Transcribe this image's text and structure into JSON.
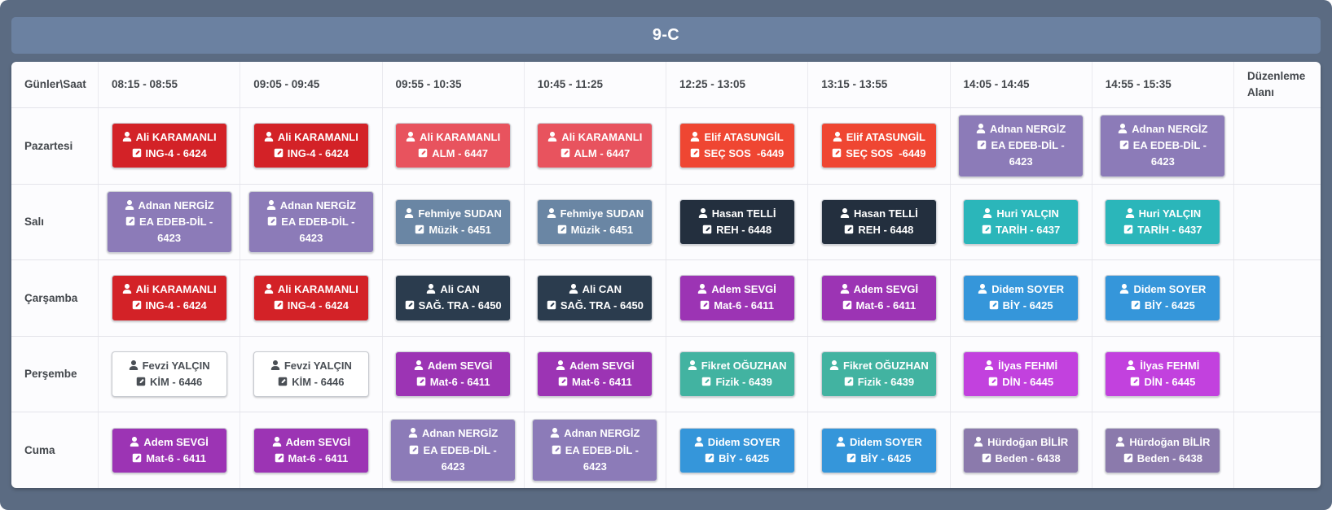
{
  "title": "9-C",
  "table": {
    "corner_header": "Günler\\Saat",
    "time_headers": [
      "08:15 - 08:55",
      "09:05 - 09:45",
      "09:55 - 10:35",
      "10:45 - 11:25",
      "12:25 - 13:05",
      "13:15 - 13:55",
      "14:05 - 14:45",
      "14:55 - 15:35"
    ],
    "edit_header": "Düzenleme Alanı",
    "days": [
      {
        "label": "Pazartesi",
        "lessons": [
          {
            "teacher": "Ali KARAMANLI",
            "course": "ING-4 - 6424",
            "style": "red"
          },
          {
            "teacher": "Ali KARAMANLI",
            "course": "ING-4 - 6424",
            "style": "red"
          },
          {
            "teacher": "Ali KARAMANLI",
            "course": "ALM - 6447",
            "style": "lightred"
          },
          {
            "teacher": "Ali KARAMANLI",
            "course": "ALM - 6447",
            "style": "lightred"
          },
          {
            "teacher": "Elif ATASUNGİL",
            "course": "SEÇ SOS  -6449",
            "style": "orange"
          },
          {
            "teacher": "Elif ATASUNGİL",
            "course": "SEÇ SOS  -6449",
            "style": "orange"
          },
          {
            "teacher": "Adnan NERGİZ",
            "course": "EA EDEB-DİL - 6423",
            "style": "lavender"
          },
          {
            "teacher": "Adnan NERGİZ",
            "course": "EA EDEB-DİL - 6423",
            "style": "lavender"
          }
        ]
      },
      {
        "label": "Salı",
        "lessons": [
          {
            "teacher": "Adnan NERGİZ",
            "course": "EA EDEB-DİL - 6423",
            "style": "lavender"
          },
          {
            "teacher": "Adnan NERGİZ",
            "course": "EA EDEB-DİL - 6423",
            "style": "lavender"
          },
          {
            "teacher": "Fehmiye SUDAN",
            "course": "Müzik - 6451",
            "style": "slate"
          },
          {
            "teacher": "Fehmiye SUDAN",
            "course": "Müzik - 6451",
            "style": "slate"
          },
          {
            "teacher": "Hasan TELLİ",
            "course": "REH - 6448",
            "style": "navy"
          },
          {
            "teacher": "Hasan TELLİ",
            "course": "REH - 6448",
            "style": "navy"
          },
          {
            "teacher": "Huri YALÇIN",
            "course": "TARİH - 6437",
            "style": "teal"
          },
          {
            "teacher": "Huri YALÇIN",
            "course": "TARİH - 6437",
            "style": "teal"
          }
        ]
      },
      {
        "label": "Çarşamba",
        "lessons": [
          {
            "teacher": "Ali KARAMANLI",
            "course": "ING-4 - 6424",
            "style": "red"
          },
          {
            "teacher": "Ali KARAMANLI",
            "course": "ING-4 - 6424",
            "style": "red"
          },
          {
            "teacher": "Ali CAN",
            "course": "SAĞ. TRA - 6450",
            "style": "darkslate"
          },
          {
            "teacher": "Ali CAN",
            "course": "SAĞ. TRA - 6450",
            "style": "darkslate"
          },
          {
            "teacher": "Adem SEVGİ",
            "course": "Mat-6 - 6411",
            "style": "purple"
          },
          {
            "teacher": "Adem SEVGİ",
            "course": "Mat-6 - 6411",
            "style": "purple"
          },
          {
            "teacher": "Didem SOYER",
            "course": "BİY - 6425",
            "style": "blue"
          },
          {
            "teacher": "Didem SOYER",
            "course": "BİY - 6425",
            "style": "blue"
          }
        ]
      },
      {
        "label": "Perşembe",
        "lessons": [
          {
            "teacher": "Fevzi YALÇIN",
            "course": "KİM - 6446",
            "style": "white"
          },
          {
            "teacher": "Fevzi YALÇIN",
            "course": "KİM - 6446",
            "style": "white"
          },
          {
            "teacher": "Adem SEVGİ",
            "course": "Mat-6 - 6411",
            "style": "purple"
          },
          {
            "teacher": "Adem SEVGİ",
            "course": "Mat-6 - 6411",
            "style": "purple"
          },
          {
            "teacher": "Fikret OĞUZHAN",
            "course": "Fizik - 6439",
            "style": "green"
          },
          {
            "teacher": "Fikret OĞUZHAN",
            "course": "Fizik - 6439",
            "style": "green"
          },
          {
            "teacher": "İlyas FEHMİ",
            "course": "DİN - 6445",
            "style": "magenta"
          },
          {
            "teacher": "İlyas FEHMİ",
            "course": "DİN - 6445",
            "style": "magenta"
          }
        ]
      },
      {
        "label": "Cuma",
        "lessons": [
          {
            "teacher": "Adem SEVGİ",
            "course": "Mat-6 - 6411",
            "style": "purple"
          },
          {
            "teacher": "Adem SEVGİ",
            "course": "Mat-6 - 6411",
            "style": "purple"
          },
          {
            "teacher": "Adnan NERGİZ",
            "course": "EA EDEB-DİL - 6423",
            "style": "lavender"
          },
          {
            "teacher": "Adnan NERGİZ",
            "course": "EA EDEB-DİL - 6423",
            "style": "lavender"
          },
          {
            "teacher": "Didem SOYER",
            "course": "BİY - 6425",
            "style": "blue"
          },
          {
            "teacher": "Didem SOYER",
            "course": "BİY - 6425",
            "style": "blue"
          },
          {
            "teacher": "Hürdoğan BİLİR",
            "course": "Beden - 6438",
            "style": "mutedpurple"
          },
          {
            "teacher": "Hürdoğan BİLİR",
            "course": "Beden - 6438",
            "style": "mutedpurple"
          }
        ]
      }
    ]
  },
  "colors": {
    "red": {
      "bg": "#d32227",
      "fg": "#ffffff"
    },
    "lightred": {
      "bg": "#e8535e",
      "fg": "#ffffff"
    },
    "orange": {
      "bg": "#ef4632",
      "fg": "#ffffff"
    },
    "lavender": {
      "bg": "#8c7bb8",
      "fg": "#ffffff"
    },
    "slate": {
      "bg": "#6a86a4",
      "fg": "#ffffff"
    },
    "navy": {
      "bg": "#232f3e",
      "fg": "#ffffff"
    },
    "teal": {
      "bg": "#2bb6ba",
      "fg": "#ffffff"
    },
    "darkslate": {
      "bg": "#2b3c4e",
      "fg": "#ffffff"
    },
    "purple": {
      "bg": "#9c34b4",
      "fg": "#ffffff"
    },
    "blue": {
      "bg": "#3596da",
      "fg": "#ffffff"
    },
    "white": {
      "bg": "#ffffff",
      "fg": "#4a4f55",
      "border": "#c6c9cf"
    },
    "green": {
      "bg": "#42b3a1",
      "fg": "#ffffff"
    },
    "magenta": {
      "bg": "#c241de",
      "fg": "#ffffff"
    },
    "mutedpurple": {
      "bg": "#8b7aac",
      "fg": "#ffffff"
    }
  },
  "icons": {
    "teacher": "user-icon",
    "course": "edit-icon"
  }
}
